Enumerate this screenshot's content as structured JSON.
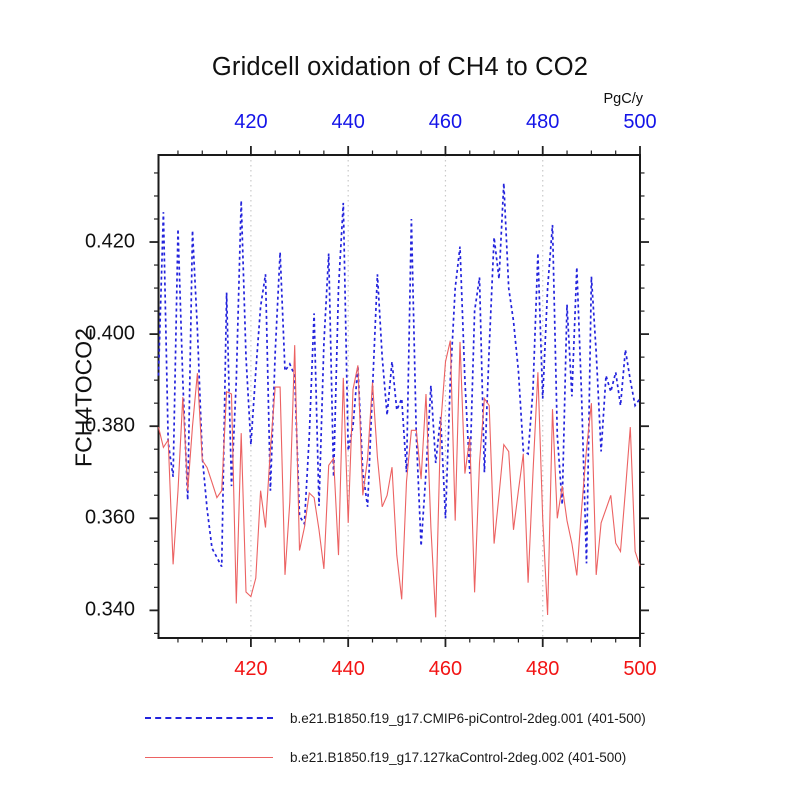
{
  "title": "Gridcell oxidation of CH4 to CO2",
  "top_axis": {
    "unit_label": "PgC/y",
    "tick_values": [
      420,
      440,
      460,
      480,
      500
    ],
    "tick_labels": [
      "420",
      "440",
      "460",
      "480",
      "500"
    ],
    "label_color": "#1414e8"
  },
  "bottom_axis": {
    "tick_values": [
      420,
      440,
      460,
      480,
      500
    ],
    "tick_labels": [
      "420",
      "440",
      "460",
      "480",
      "500"
    ],
    "label_color": "#f21414"
  },
  "left_axis": {
    "title": "FCH4TOCO2",
    "tick_values": [
      0.34,
      0.36,
      0.38,
      0.4,
      0.42
    ],
    "tick_labels": [
      "0.340",
      "0.360",
      "0.380",
      "0.400",
      "0.420"
    ]
  },
  "legend": {
    "items": [
      {
        "label": "b.e21.B1850.f19_g17.CMIP6-piControl-2deg.001 (401-500)",
        "color": "#2323dc",
        "style": "dashed"
      },
      {
        "label": "b.e21.B1850.f19_g17.127kaControl-2deg.002 (401-500)",
        "color": "#ec6262",
        "style": "solid"
      }
    ]
  },
  "chart_data": {
    "type": "line",
    "title": "Gridcell oxidation of CH4 to CO2",
    "ylabel": "FCH4TOCO2",
    "top_unit": "PgC/y",
    "x_start": 401,
    "x_end": 500,
    "x_step": 1,
    "xlim": [
      401,
      500
    ],
    "ylim": [
      0.334,
      0.4389
    ],
    "x_minor_step": 5,
    "y_minor_step": 0.005,
    "grid_x_values": [
      420,
      440,
      460,
      480
    ],
    "grid_color": "#c9c9c9",
    "series": [
      {
        "name": "b.e21.B1850.f19_g17.CMIP6-piControl-2deg.001 (401-500)",
        "color": "#2323dc",
        "style": "dashed",
        "values": [
          0.391,
          0.4265,
          0.3765,
          0.369,
          0.4228,
          0.39,
          0.364,
          0.4225,
          0.401,
          0.3733,
          0.362,
          0.3535,
          0.3515,
          0.3495,
          0.409,
          0.367,
          0.39,
          0.429,
          0.395,
          0.376,
          0.392,
          0.406,
          0.413,
          0.366,
          0.396,
          0.4178,
          0.392,
          0.3935,
          0.391,
          0.3605,
          0.3588,
          0.378,
          0.4045,
          0.3627,
          0.398,
          0.4175,
          0.369,
          0.41,
          0.4285,
          0.3747,
          0.38,
          0.393,
          0.37,
          0.3625,
          0.388,
          0.413,
          0.395,
          0.3824,
          0.394,
          0.3835,
          0.386,
          0.37,
          0.425,
          0.378,
          0.354,
          0.37,
          0.3888,
          0.372,
          0.382,
          0.36,
          0.39,
          0.41,
          0.419,
          0.39,
          0.3697,
          0.405,
          0.4123,
          0.37,
          0.397,
          0.421,
          0.412,
          0.4328,
          0.41,
          0.4028,
          0.392,
          0.3747,
          0.374,
          0.388,
          0.4176,
          0.386,
          0.41,
          0.4237,
          0.378,
          0.363,
          0.4064,
          0.3865,
          0.4145,
          0.3865,
          0.3502,
          0.4125,
          0.396,
          0.3745,
          0.391,
          0.3875,
          0.3917,
          0.3845,
          0.3966,
          0.39,
          0.3845,
          0.386
        ]
      },
      {
        "name": "b.e21.B1850.f19_g17.127kaControl-2deg.002 (401-500)",
        "color": "#ec6262",
        "style": "solid",
        "values": [
          0.3798,
          0.3754,
          0.377,
          0.35,
          0.366,
          0.3863,
          0.366,
          0.38,
          0.3915,
          0.3726,
          0.371,
          0.3678,
          0.3645,
          0.366,
          0.3875,
          0.387,
          0.3415,
          0.3785,
          0.344,
          0.343,
          0.347,
          0.366,
          0.358,
          0.375,
          0.3885,
          0.3885,
          0.3477,
          0.3635,
          0.3976,
          0.353,
          0.358,
          0.3655,
          0.3645,
          0.3575,
          0.349,
          0.3715,
          0.373,
          0.352,
          0.3905,
          0.359,
          0.388,
          0.3932,
          0.365,
          0.373,
          0.3895,
          0.3733,
          0.3625,
          0.365,
          0.3711,
          0.352,
          0.3424,
          0.368,
          0.3791,
          0.3791,
          0.3685,
          0.387,
          0.358,
          0.3385,
          0.38,
          0.394,
          0.3986,
          0.3595,
          0.3983,
          0.3697,
          0.3775,
          0.3439,
          0.372,
          0.386,
          0.3845,
          0.3545,
          0.365,
          0.376,
          0.3745,
          0.3575,
          0.366,
          0.374,
          0.346,
          0.37,
          0.3917,
          0.36,
          0.339,
          0.3837,
          0.36,
          0.367,
          0.3595,
          0.3545,
          0.3476,
          0.362,
          0.375,
          0.385,
          0.3477,
          0.359,
          0.362,
          0.365,
          0.3546,
          0.3528,
          0.366,
          0.3798,
          0.3528,
          0.3496
        ]
      }
    ]
  }
}
